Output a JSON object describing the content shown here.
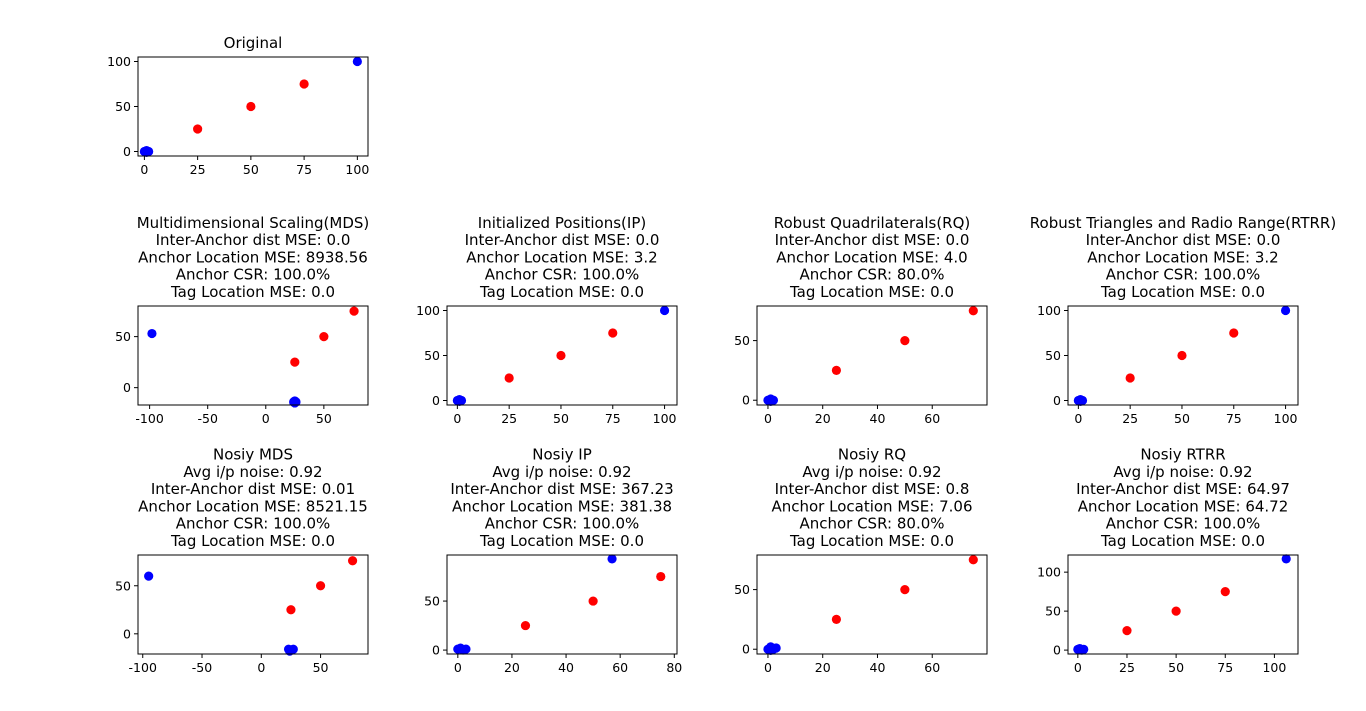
{
  "colors": {
    "anchor": "#0000ff",
    "tag": "#ff0000"
  },
  "chart_data": [
    {
      "type": "scatter",
      "title": [
        "Original"
      ],
      "xlim": [
        -3,
        105
      ],
      "ylim": [
        -5,
        105
      ],
      "xticks": [
        0,
        25,
        50,
        75,
        100
      ],
      "yticks": [
        0,
        50,
        100
      ],
      "series": [
        {
          "color": "#0000ff",
          "points": [
            [
              0,
              0
            ],
            [
              1,
              1
            ],
            [
              2,
              0
            ],
            [
              1,
              -1
            ],
            [
              100,
              100
            ]
          ]
        },
        {
          "color": "#ff0000",
          "points": [
            [
              25,
              25
            ],
            [
              50,
              50
            ],
            [
              75,
              75
            ]
          ]
        }
      ]
    },
    {
      "type": "scatter",
      "title": [
        "Multidimensional Scaling(MDS)",
        "Inter-Anchor dist MSE: 0.0",
        "Anchor Location MSE: 8938.56",
        "Anchor CSR: 100.0%",
        "Tag Location MSE: 0.0"
      ],
      "xlim": [
        -110,
        88
      ],
      "ylim": [
        -17,
        80
      ],
      "xticks": [
        -100,
        -50,
        0,
        50
      ],
      "yticks": [
        0,
        50
      ],
      "series": [
        {
          "color": "#0000ff",
          "points": [
            [
              -98,
              53
            ],
            [
              24,
              -14
            ],
            [
              25,
              -13
            ],
            [
              26,
              -14
            ],
            [
              25,
              -15
            ]
          ]
        },
        {
          "color": "#ff0000",
          "points": [
            [
              25,
              25
            ],
            [
              50,
              50
            ],
            [
              76,
              75
            ]
          ]
        }
      ]
    },
    {
      "type": "scatter",
      "title": [
        "Initialized Positions(IP)",
        "Inter-Anchor dist MSE: 0.0",
        "Anchor Location MSE: 3.2",
        "Anchor CSR: 100.0%",
        "Tag Location MSE: 0.0"
      ],
      "xlim": [
        -5,
        106
      ],
      "ylim": [
        -5,
        105
      ],
      "xticks": [
        0,
        25,
        50,
        75,
        100
      ],
      "yticks": [
        0,
        50,
        100
      ],
      "series": [
        {
          "color": "#0000ff",
          "points": [
            [
              0,
              0
            ],
            [
              1,
              1
            ],
            [
              2,
              0
            ],
            [
              1,
              -1
            ],
            [
              100,
              100
            ]
          ]
        },
        {
          "color": "#ff0000",
          "points": [
            [
              25,
              25
            ],
            [
              50,
              50
            ],
            [
              75,
              75
            ]
          ]
        }
      ]
    },
    {
      "type": "scatter",
      "title": [
        "Robust Quadrilaterals(RQ)",
        "Inter-Anchor dist MSE: 0.0",
        "Anchor Location MSE: 4.0",
        "Anchor CSR: 80.0%",
        "Tag Location MSE: 0.0"
      ],
      "xlim": [
        -4,
        80
      ],
      "ylim": [
        -4,
        79
      ],
      "xticks": [
        0,
        20,
        40,
        60
      ],
      "yticks": [
        0,
        50
      ],
      "series": [
        {
          "color": "#0000ff",
          "points": [
            [
              0,
              0
            ],
            [
              1,
              1
            ],
            [
              2,
              0
            ],
            [
              1,
              -1
            ]
          ]
        },
        {
          "color": "#ff0000",
          "points": [
            [
              25,
              25
            ],
            [
              50,
              50
            ],
            [
              75,
              75
            ]
          ]
        }
      ]
    },
    {
      "type": "scatter",
      "title": [
        "Robust Triangles and Radio Range(RTRR)",
        "Inter-Anchor dist MSE: 0.0",
        "Anchor Location MSE: 3.2",
        "Anchor CSR: 100.0%",
        "Tag Location MSE: 0.0"
      ],
      "xlim": [
        -5,
        106
      ],
      "ylim": [
        -5,
        105
      ],
      "xticks": [
        0,
        25,
        50,
        75,
        100
      ],
      "yticks": [
        0,
        50,
        100
      ],
      "series": [
        {
          "color": "#0000ff",
          "points": [
            [
              0,
              0
            ],
            [
              1,
              1
            ],
            [
              2,
              0
            ],
            [
              1,
              -1
            ],
            [
              100,
              100
            ]
          ]
        },
        {
          "color": "#ff0000",
          "points": [
            [
              25,
              25
            ],
            [
              50,
              50
            ],
            [
              75,
              75
            ]
          ]
        }
      ]
    },
    {
      "type": "scatter",
      "title": [
        "Nosiy MDS",
        "Avg i/p noise: 0.92",
        "Inter-Anchor dist MSE: 0.01",
        "Anchor Location MSE: 8521.15",
        "Anchor CSR: 100.0%",
        "Tag Location MSE: 0.0"
      ],
      "xlim": [
        -104,
        90
      ],
      "ylim": [
        -21,
        82
      ],
      "xticks": [
        -100,
        -50,
        0,
        50
      ],
      "yticks": [
        0,
        50
      ],
      "series": [
        {
          "color": "#0000ff",
          "points": [
            [
              -95,
              60
            ],
            [
              23,
              -16
            ],
            [
              25,
              -17
            ],
            [
              27,
              -16
            ],
            [
              24,
              -18
            ]
          ]
        },
        {
          "color": "#ff0000",
          "points": [
            [
              25,
              25
            ],
            [
              50,
              50
            ],
            [
              77,
              76
            ]
          ]
        }
      ]
    },
    {
      "type": "scatter",
      "title": [
        "Nosiy IP",
        "Avg i/p noise: 0.92",
        "Inter-Anchor dist MSE: 367.23",
        "Anchor Location MSE: 381.38",
        "Anchor CSR: 100.0%",
        "Tag Location MSE: 0.0"
      ],
      "xlim": [
        -4,
        81
      ],
      "ylim": [
        -4,
        97
      ],
      "xticks": [
        0,
        20,
        40,
        60,
        80
      ],
      "yticks": [
        0,
        50
      ],
      "series": [
        {
          "color": "#0000ff",
          "points": [
            [
              0,
              1
            ],
            [
              1,
              2
            ],
            [
              2,
              0
            ],
            [
              3,
              1
            ],
            [
              57,
              93
            ]
          ]
        },
        {
          "color": "#ff0000",
          "points": [
            [
              25,
              25
            ],
            [
              50,
              50
            ],
            [
              75,
              75
            ]
          ]
        }
      ]
    },
    {
      "type": "scatter",
      "title": [
        "Nosiy RQ",
        "Avg i/p noise: 0.92",
        "Inter-Anchor dist MSE: 0.8",
        "Anchor Location MSE: 7.06",
        "Anchor CSR: 80.0%",
        "Tag Location MSE: 0.0"
      ],
      "xlim": [
        -4,
        80
      ],
      "ylim": [
        -4,
        79
      ],
      "xticks": [
        0,
        20,
        40,
        60
      ],
      "yticks": [
        0,
        50
      ],
      "series": [
        {
          "color": "#0000ff",
          "points": [
            [
              0,
              0
            ],
            [
              1,
              2
            ],
            [
              2,
              0
            ],
            [
              3,
              1
            ],
            [
              1,
              -1
            ]
          ]
        },
        {
          "color": "#ff0000",
          "points": [
            [
              25,
              25
            ],
            [
              50,
              50
            ],
            [
              75,
              75
            ]
          ]
        }
      ]
    },
    {
      "type": "scatter",
      "title": [
        "Nosiy RTRR",
        "Avg i/p noise: 0.92",
        "Inter-Anchor dist MSE: 64.97",
        "Anchor Location MSE: 64.72",
        "Anchor CSR: 100.0%",
        "Tag Location MSE: 0.0"
      ],
      "xlim": [
        -5,
        112
      ],
      "ylim": [
        -5,
        122
      ],
      "xticks": [
        0,
        25,
        50,
        75,
        100
      ],
      "yticks": [
        0,
        50,
        100
      ],
      "series": [
        {
          "color": "#0000ff",
          "points": [
            [
              0,
              1
            ],
            [
              1,
              2
            ],
            [
              2,
              0
            ],
            [
              3,
              1
            ],
            [
              106,
              117
            ]
          ]
        },
        {
          "color": "#ff0000",
          "points": [
            [
              25,
              25
            ],
            [
              50,
              50
            ],
            [
              75,
              75
            ]
          ]
        }
      ]
    }
  ]
}
